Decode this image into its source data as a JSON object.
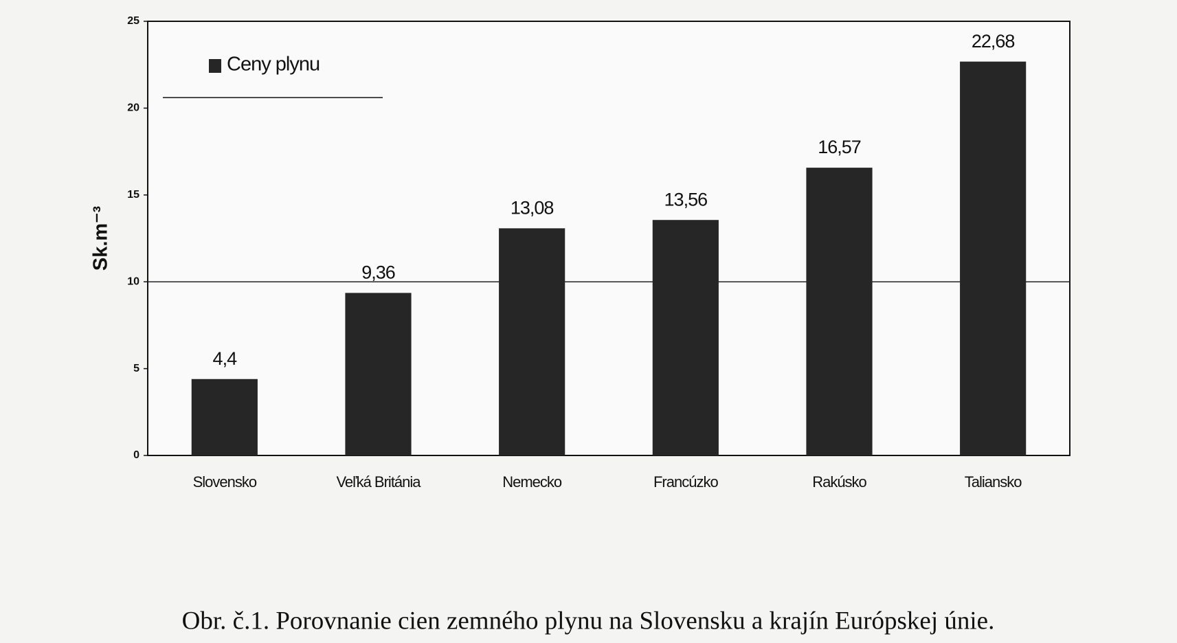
{
  "chart_data": {
    "type": "bar",
    "y_label": "Sk.m⁻³",
    "legend": "Ceny plynu",
    "legend_position": "upper left",
    "categories": [
      "Slovensko",
      "Veľká Británia",
      "Nemecko",
      "Francúzko",
      "Rakúsko",
      "Taliansko"
    ],
    "values": [
      4.4,
      9.36,
      13.08,
      13.56,
      16.57,
      22.68
    ],
    "value_labels": [
      "4,4",
      "9,36",
      "13,08",
      "13,56",
      "16,57",
      "22,68"
    ],
    "color": "#262626",
    "ylim": [
      0,
      25
    ],
    "yticks": [
      0,
      5,
      10,
      15,
      20,
      25
    ],
    "hline": 10,
    "caption": "Obr. č.1. Porovnanie cien zemného plynu na Slovensku a krajín Európskej únie."
  }
}
